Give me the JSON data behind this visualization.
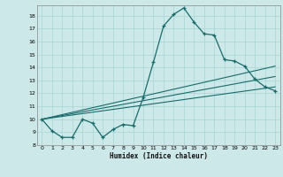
{
  "title": "",
  "xlabel": "Humidex (Indice chaleur)",
  "bg_color": "#cce8e8",
  "grid_color": "#a8d4d4",
  "line_color": "#1a6b6b",
  "xlim": [
    -0.5,
    23.5
  ],
  "ylim": [
    8.0,
    18.8
  ],
  "yticks": [
    8,
    9,
    10,
    11,
    12,
    13,
    14,
    15,
    16,
    17,
    18
  ],
  "xticks": [
    0,
    1,
    2,
    3,
    4,
    5,
    6,
    7,
    8,
    9,
    10,
    11,
    12,
    13,
    14,
    15,
    16,
    17,
    18,
    19,
    20,
    21,
    22,
    23
  ],
  "curve1_x": [
    0,
    1,
    2,
    3,
    4,
    5,
    6,
    7,
    8,
    9,
    10,
    11,
    12,
    13,
    14,
    15,
    16,
    17,
    18,
    19,
    20,
    21,
    22,
    23
  ],
  "curve1_y": [
    10.0,
    9.1,
    8.6,
    8.6,
    10.0,
    9.7,
    8.6,
    9.2,
    9.6,
    9.5,
    11.7,
    14.4,
    17.2,
    18.1,
    18.6,
    17.5,
    16.6,
    16.5,
    14.6,
    14.5,
    14.1,
    13.1,
    12.5,
    12.2
  ],
  "line1_x": [
    0,
    23
  ],
  "line1_y": [
    10.0,
    14.1
  ],
  "line2_x": [
    0,
    23
  ],
  "line2_y": [
    10.0,
    13.3
  ],
  "line3_x": [
    0,
    23
  ],
  "line3_y": [
    10.0,
    12.5
  ]
}
